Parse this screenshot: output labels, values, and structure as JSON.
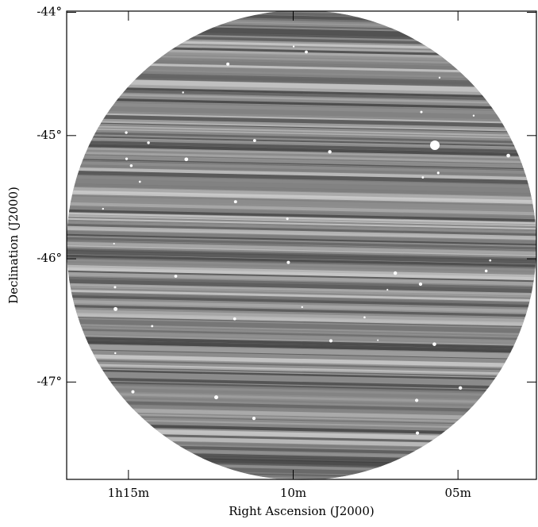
{
  "chart_data": {
    "type": "image",
    "x_label": "Right Ascension (J2000)",
    "y_label": "Declination (J2000)",
    "xlim": [
      76.875,
      62.62
    ],
    "ylim": [
      -43.99,
      -47.79
    ],
    "xticks": [
      {
        "value": 75,
        "label": "1h15m"
      },
      {
        "value": 70,
        "label": "10m"
      },
      {
        "value": 65,
        "label": "05m"
      }
    ],
    "yticks": [
      {
        "value": -44,
        "label": "-44°"
      },
      {
        "value": -45,
        "label": "-45°"
      },
      {
        "value": -46,
        "label": "-46°"
      },
      {
        "value": -47,
        "label": "-47°"
      }
    ]
  }
}
